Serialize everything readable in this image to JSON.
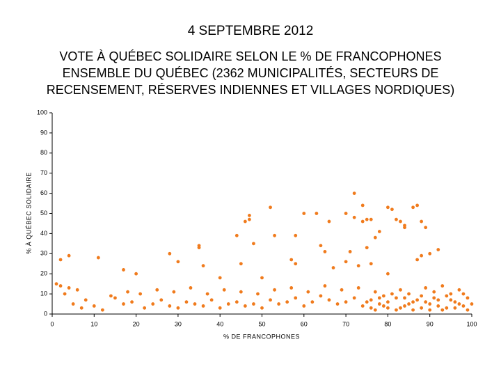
{
  "chart_data": {
    "type": "scatter",
    "title": "4 SEPTEMBRE 2012",
    "subtitle": [
      "VOTE À QUÉBEC SOLIDAIRE SELON LE % DE FRANCOPHONES",
      "ENSEMBLE DU QUÉBEC (2362 MUNICIPALITÉS, SECTEURS DE",
      "RECENSEMENT, RÉSERVES INDIENNES ET VILLAGES NORDIQUES)"
    ],
    "x_label": "% DE FRANCOPHONES",
    "y_label": "% À QUÉBEC SOLIDAIRE",
    "color": "#f07b1d",
    "xlim": [
      0,
      100
    ],
    "ylim": [
      0,
      100
    ],
    "xticks": [
      0,
      10,
      20,
      30,
      40,
      50,
      60,
      70,
      80,
      90,
      100
    ],
    "yticks": [
      0,
      10,
      20,
      30,
      40,
      50,
      60,
      70,
      80,
      90,
      100
    ],
    "x": [
      72,
      47,
      47,
      52,
      35,
      35,
      30,
      28,
      4,
      2,
      11,
      17,
      20,
      46,
      44,
      60,
      63,
      66,
      70,
      72,
      74,
      74,
      75,
      76,
      80,
      81,
      82,
      83,
      84,
      84,
      86,
      87,
      88,
      89,
      90,
      92,
      87,
      88,
      70,
      73,
      75,
      77,
      78,
      76,
      80,
      57,
      58,
      64,
      65,
      67,
      71,
      36,
      40,
      45,
      50,
      53,
      58,
      48,
      4,
      1,
      2,
      3,
      5,
      7,
      8,
      10,
      12,
      15,
      17,
      19,
      22,
      24,
      26,
      28,
      30,
      32,
      34,
      36,
      38,
      40,
      42,
      44,
      46,
      48,
      50,
      52,
      54,
      56,
      58,
      60,
      62,
      64,
      66,
      68,
      70,
      72,
      74,
      76,
      78,
      80,
      82,
      84,
      86,
      88,
      90,
      92,
      94,
      96,
      98,
      99,
      100,
      97,
      95,
      93,
      91,
      89,
      85,
      83,
      79,
      77,
      73,
      69,
      65,
      61,
      57,
      53,
      49,
      45,
      41,
      37,
      33,
      29,
      25,
      21,
      18,
      14,
      6,
      99,
      98,
      97,
      96,
      95,
      94,
      93,
      92,
      91,
      90,
      89,
      88,
      87,
      86,
      85,
      84,
      83,
      82,
      81,
      80,
      79,
      78,
      77,
      76,
      75
    ],
    "values": [
      60,
      49,
      47,
      53,
      34,
      33,
      26,
      30,
      29,
      27,
      28,
      22,
      20,
      46,
      39,
      50,
      50,
      46,
      50,
      48,
      54,
      46,
      47,
      47,
      53,
      52,
      47,
      46,
      44,
      43,
      53,
      54,
      46,
      43,
      30,
      32,
      27,
      29,
      26,
      24,
      33,
      38,
      41,
      25,
      20,
      27,
      25,
      34,
      31,
      23,
      31,
      24,
      18,
      25,
      18,
      39,
      39,
      35,
      13,
      15,
      14,
      10,
      5,
      3,
      7,
      4,
      2,
      8,
      5,
      6,
      3,
      5,
      7,
      4,
      3,
      6,
      5,
      4,
      7,
      3,
      5,
      6,
      4,
      5,
      3,
      7,
      5,
      6,
      8,
      4,
      6,
      9,
      7,
      5,
      6,
      8,
      4,
      7,
      5,
      6,
      8,
      4,
      6,
      9,
      5,
      7,
      3,
      6,
      4,
      8,
      5,
      12,
      10,
      14,
      11,
      13,
      10,
      12,
      9,
      11,
      13,
      12,
      14,
      11,
      13,
      12,
      10,
      11,
      12,
      10,
      13,
      11,
      12,
      10,
      11,
      9,
      12,
      2,
      10,
      5,
      3,
      7,
      9,
      2,
      4,
      8,
      2,
      6,
      3,
      7,
      2,
      5,
      8,
      3,
      2,
      10,
      3,
      4,
      8,
      2,
      3,
      6
    ]
  }
}
